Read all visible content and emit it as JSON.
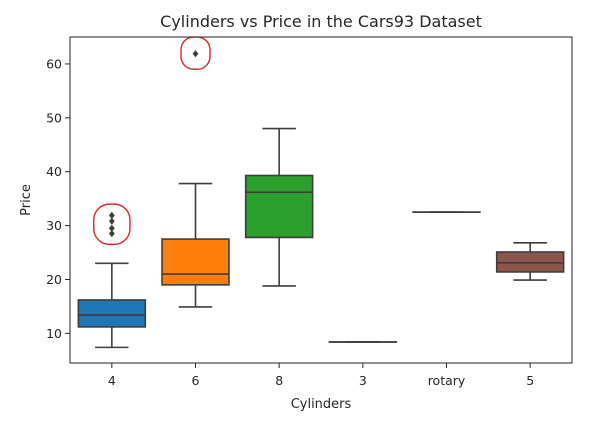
{
  "chart_data": {
    "type": "box",
    "title": "Cylinders vs Price in the Cars93 Dataset",
    "xlabel": "Cylinders",
    "ylabel": "Price",
    "ylim": [
      4.5,
      65
    ],
    "yticks": [
      10,
      20,
      30,
      40,
      50,
      60
    ],
    "categories": [
      "4",
      "6",
      "8",
      "3",
      "rotary",
      "5"
    ],
    "boxes": [
      {
        "category": "4",
        "color": "#1f77b4",
        "whisker_low": 7.4,
        "q1": 11.2,
        "median": 13.4,
        "q3": 16.2,
        "whisker_high": 23.0,
        "outliers": [
          28.5,
          29.5,
          30.8,
          31.9
        ]
      },
      {
        "category": "6",
        "color": "#ff7f0e",
        "whisker_low": 14.9,
        "q1": 19.0,
        "median": 21.0,
        "q3": 27.5,
        "whisker_high": 37.8,
        "outliers": [
          61.9
        ]
      },
      {
        "category": "8",
        "color": "#2ca02c",
        "whisker_low": 18.8,
        "q1": 27.8,
        "median": 36.2,
        "q3": 39.3,
        "whisker_high": 48.0,
        "outliers": []
      },
      {
        "category": "3",
        "color": "#d62728",
        "whisker_low": 8.4,
        "q1": 8.4,
        "median": 8.4,
        "q3": 8.4,
        "whisker_high": 8.4,
        "outliers": []
      },
      {
        "category": "rotary",
        "color": "#9467bd",
        "whisker_low": 32.5,
        "q1": 32.5,
        "median": 32.5,
        "q3": 32.5,
        "whisker_high": 32.5,
        "outliers": []
      },
      {
        "category": "5",
        "color": "#8c564b",
        "whisker_low": 19.9,
        "q1": 21.4,
        "median": 23.1,
        "q3": 25.1,
        "whisker_high": 26.8,
        "outliers": []
      }
    ],
    "annotations": [
      {
        "type": "outlier-highlight-circle",
        "color": "#d62728",
        "category": "4",
        "y_range": [
          28,
          32.5
        ]
      },
      {
        "type": "outlier-highlight-circle",
        "color": "#d62728",
        "category": "6",
        "y_range": [
          60.5,
          63.5
        ]
      }
    ]
  }
}
